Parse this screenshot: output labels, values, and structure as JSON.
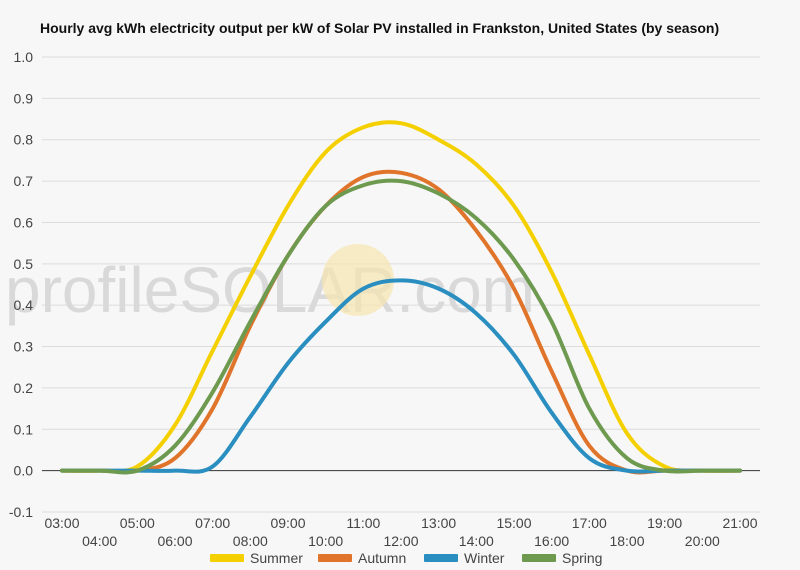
{
  "chart_data": {
    "type": "line",
    "title": "Hourly avg kWh electricity output per kW of Solar PV installed in Frankston, United States (by season)",
    "watermark": "profileSOLAR.com",
    "xlabel": "",
    "ylabel": "",
    "ylim": [
      -0.1,
      1.0
    ],
    "yticks": [
      "1.0",
      "0.9",
      "0.8",
      "0.7",
      "0.6",
      "0.5",
      "0.4",
      "0.3",
      "0.2",
      "0.1",
      "0.0",
      "-0.1"
    ],
    "ytick_values": [
      1.0,
      0.9,
      0.8,
      0.7,
      0.6,
      0.5,
      0.4,
      0.3,
      0.2,
      0.1,
      0.0,
      -0.1
    ],
    "x": [
      "03:00",
      "04:00",
      "05:00",
      "06:00",
      "07:00",
      "08:00",
      "09:00",
      "10:00",
      "11:00",
      "12:00",
      "13:00",
      "14:00",
      "15:00",
      "16:00",
      "17:00",
      "18:00",
      "19:00",
      "20:00",
      "21:00"
    ],
    "grid": true,
    "legend_position": "bottom",
    "series": [
      {
        "name": "Summer",
        "color": "#f5d000",
        "values": [
          0.0,
          0.0,
          0.01,
          0.11,
          0.29,
          0.47,
          0.64,
          0.77,
          0.83,
          0.84,
          0.8,
          0.74,
          0.64,
          0.48,
          0.28,
          0.09,
          0.01,
          0.0,
          0.0
        ]
      },
      {
        "name": "Autumn",
        "color": "#e0742a",
        "values": [
          0.0,
          0.0,
          0.0,
          0.03,
          0.15,
          0.35,
          0.52,
          0.64,
          0.71,
          0.72,
          0.68,
          0.58,
          0.44,
          0.24,
          0.06,
          0.0,
          0.0,
          0.0,
          0.0
        ]
      },
      {
        "name": "Winter",
        "color": "#2a8fc0",
        "values": [
          0.0,
          0.0,
          0.0,
          0.0,
          0.01,
          0.13,
          0.26,
          0.36,
          0.44,
          0.46,
          0.44,
          0.38,
          0.28,
          0.14,
          0.03,
          0.0,
          0.0,
          0.0,
          0.0
        ]
      },
      {
        "name": "Spring",
        "color": "#6e9a50",
        "values": [
          0.0,
          0.0,
          0.0,
          0.06,
          0.19,
          0.36,
          0.52,
          0.64,
          0.69,
          0.7,
          0.67,
          0.61,
          0.51,
          0.36,
          0.15,
          0.03,
          0.0,
          0.0,
          0.0
        ]
      }
    ]
  }
}
